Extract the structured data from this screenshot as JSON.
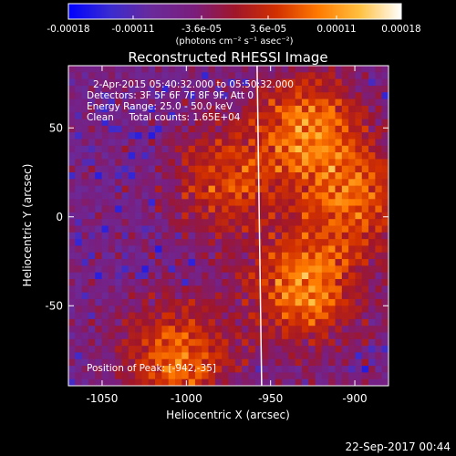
{
  "colorbar": {
    "tick_labels": [
      "-0.00018",
      "-0.00011",
      "-3.6e-05",
      "3.6e-05",
      "0.00011",
      "0.00018"
    ],
    "tick_values": [
      -0.00018,
      -0.00011,
      -3.6e-05,
      3.6e-05,
      0.00011,
      0.00018
    ],
    "range": [
      -0.00018,
      0.00018
    ],
    "units_label": "(photons cm⁻² s⁻¹ asec⁻²)",
    "stops": [
      "#0000ff",
      "#3a2bd0",
      "#6a2a9a",
      "#7a1e7e",
      "#a0162a",
      "#d23000",
      "#ff7a00",
      "#ffc040",
      "#ffffff"
    ]
  },
  "annotations": {
    "line1": "2-Apr-2015 05:40:32.000 to 05:50:32.000",
    "line2": "Detectors: 3F 5F 6F 7F 8F 9F, Att 0",
    "line3": "Energy Range: 25.0 - 50.0 keV",
    "line4": "Clean     Total counts: 1.65E+04",
    "peak": "Position of Peak: [-942,-35]"
  },
  "footer": {
    "timestamp": "22-Sep-2017 00:44"
  },
  "chart_data": {
    "type": "heatmap",
    "title": "Reconstructed RHESSI Image",
    "xlabel": "Heliocentric X (arcsec)",
    "ylabel": "Heliocentric Y (arcsec)",
    "xlim": [
      -1070,
      -880
    ],
    "ylim": [
      -95,
      85
    ],
    "xticks": [
      -1050,
      -1000,
      -950,
      -900
    ],
    "yticks": [
      -50,
      0,
      50
    ],
    "xtick_labels": [
      "-1050",
      "-1000",
      "-950",
      "-900"
    ],
    "ytick_labels": [
      "-50",
      "0",
      "50"
    ],
    "limb_line": {
      "x": -958,
      "color": "#ffffff"
    },
    "peak": {
      "x": -942,
      "y": -35
    },
    "bright_regions": [
      {
        "x": -928,
        "y": 50,
        "intensity": 0.95
      },
      {
        "x": -930,
        "y": -40,
        "intensity": 1.0
      },
      {
        "x": -1005,
        "y": -80,
        "intensity": 0.9
      },
      {
        "x": -978,
        "y": 20,
        "intensity": 0.7
      },
      {
        "x": -900,
        "y": 10,
        "intensity": 0.8
      }
    ],
    "colormap": "blue-purple-red-yellow-white"
  }
}
